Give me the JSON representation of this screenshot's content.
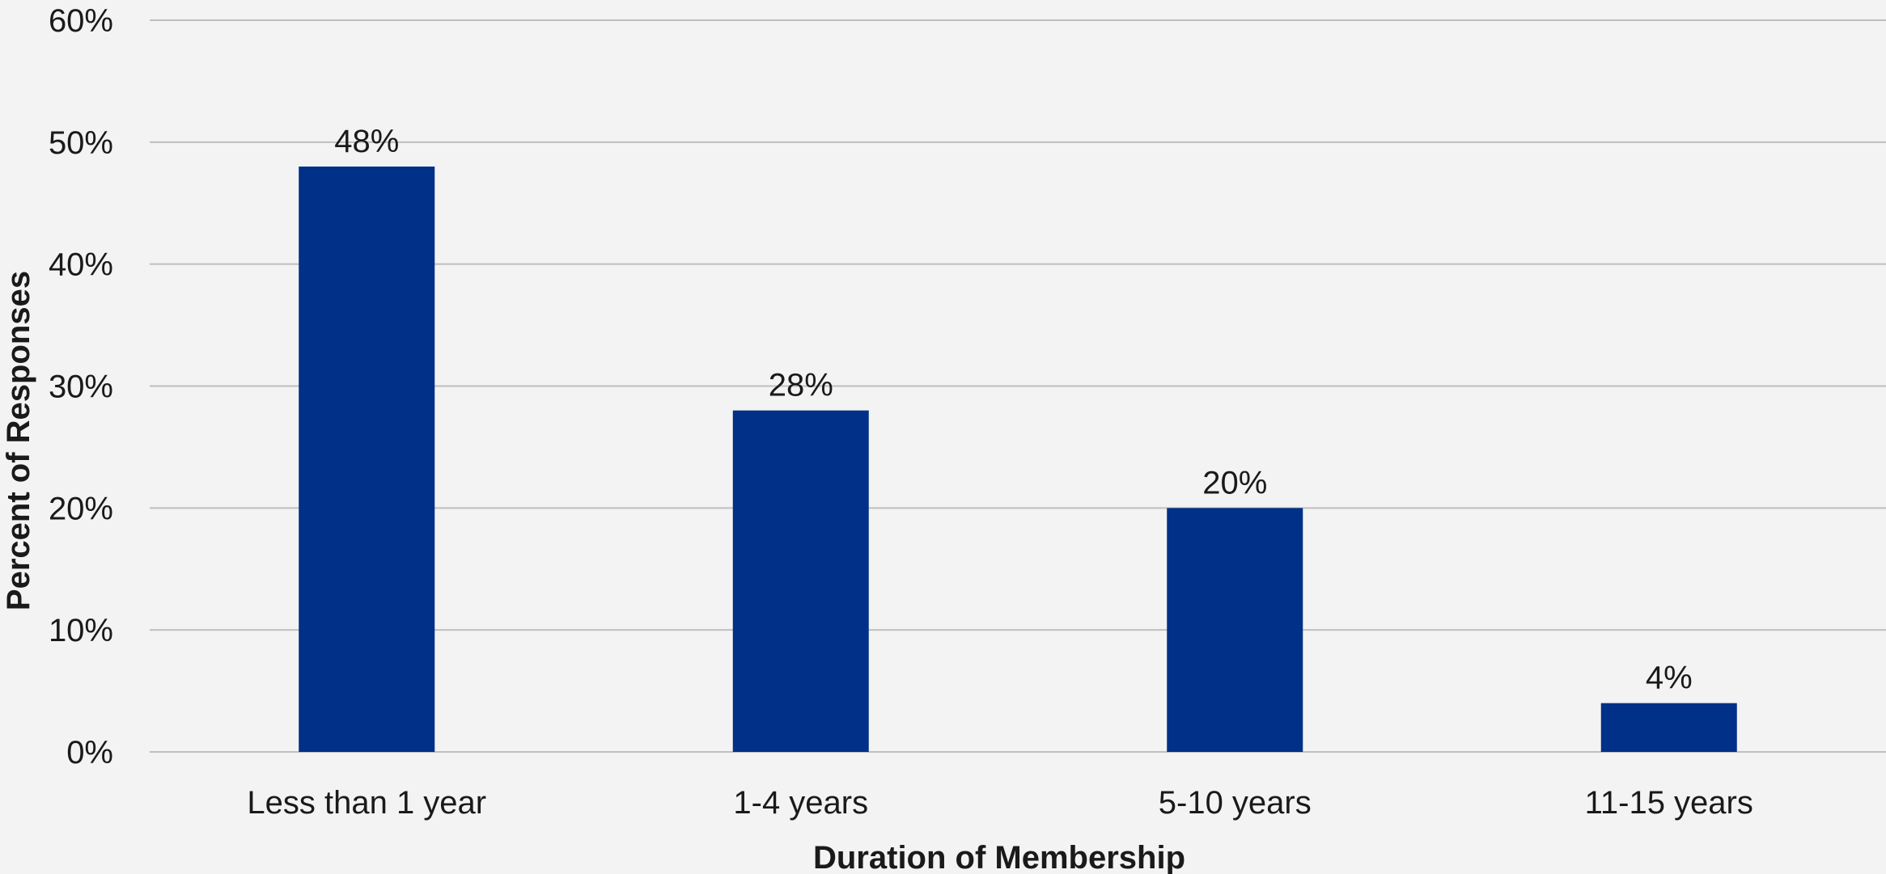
{
  "chart_data": {
    "type": "bar",
    "categories": [
      "Less than 1 year",
      "1-4 years",
      "5-10 years",
      "11-15 years"
    ],
    "values": [
      48,
      28,
      20,
      4
    ],
    "data_labels": [
      "48%",
      "28%",
      "20%",
      "4%"
    ],
    "title": "",
    "xlabel": "Duration of Membership",
    "ylabel": "Percent of Responses",
    "ylim": [
      0,
      60
    ],
    "yticks": [
      0,
      10,
      20,
      30,
      40,
      50,
      60
    ],
    "ytick_labels": [
      "0%",
      "10%",
      "20%",
      "30%",
      "40%",
      "50%",
      "60%"
    ],
    "grid": true,
    "legend": "none",
    "bar_color": "#003087",
    "background_color": "#f3f3f3"
  }
}
